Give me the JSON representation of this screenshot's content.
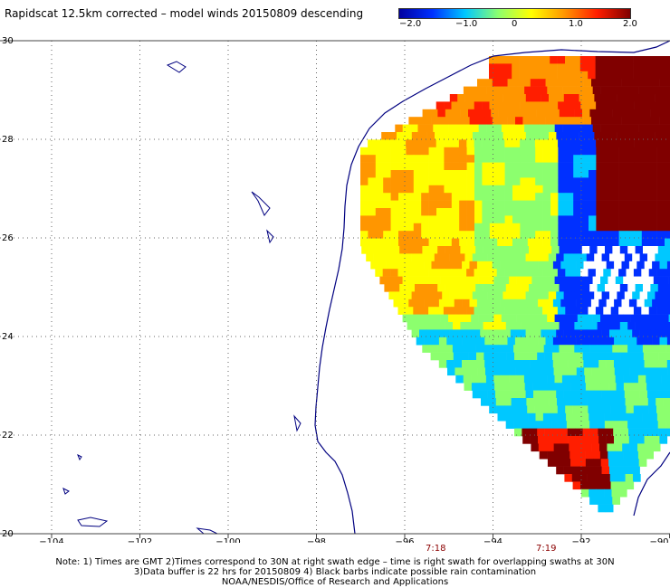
{
  "title": "Rapidscat 12.5km corrected – model winds 20150809 descending",
  "colorbar": {
    "ticks": [
      "−2.0",
      "−1.0",
      "0",
      "1.0",
      "2.0"
    ],
    "colors": [
      "#0000a0",
      "#0030ff",
      "#00c8ff",
      "#8cff6e",
      "#ffff00",
      "#ff9600",
      "#ff1e00",
      "#800000"
    ]
  },
  "axes": {
    "x_ticks": [
      "−104",
      "−102",
      "−100",
      "−98",
      "−96",
      "−94",
      "−92",
      "−90"
    ],
    "y_ticks": [
      "30",
      "28",
      "26",
      "24",
      "22",
      "20"
    ],
    "lon_range": [
      -105,
      -90
    ],
    "lat_range": [
      20,
      30
    ]
  },
  "swath_times": [
    "7:18",
    "7:19"
  ],
  "notes": [
    "Note: 1) Times are GMT 2)Times correspond to 30N at right swath edge – time is right swath for overlapping swaths at 30N",
    "3)Data buffer is 22 hrs for 20150809 4) Black barbs indicate possible rain contamination",
    "NOAA/NESDIS/Office of Research and Applications"
  ]
}
